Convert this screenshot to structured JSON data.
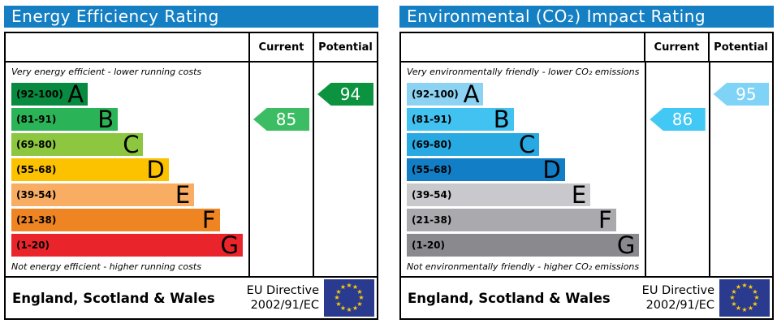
{
  "chart_data": [
    {
      "type": "bar",
      "title": "Energy Efficiency Rating",
      "columns": {
        "current": "Current",
        "potential": "Potential"
      },
      "top_note": "Very energy efficient - lower running costs",
      "bottom_note": "Not energy efficient - higher running costs",
      "bands": [
        {
          "letter": "A",
          "label": "(92-100)",
          "min": 92,
          "max": 100,
          "color": "#088a40",
          "width_pct": 33
        },
        {
          "letter": "B",
          "label": "(81-91)",
          "min": 81,
          "max": 91,
          "color": "#2bb457",
          "width_pct": 46
        },
        {
          "letter": "C",
          "label": "(69-80)",
          "min": 69,
          "max": 80,
          "color": "#8dc63f",
          "width_pct": 57
        },
        {
          "letter": "D",
          "label": "(55-68)",
          "min": 55,
          "max": 68,
          "color": "#fcc200",
          "width_pct": 68
        },
        {
          "letter": "E",
          "label": "(39-54)",
          "min": 39,
          "max": 54,
          "color": "#f9ad63",
          "width_pct": 79
        },
        {
          "letter": "F",
          "label": "(21-38)",
          "min": 21,
          "max": 38,
          "color": "#ee8522",
          "width_pct": 90
        },
        {
          "letter": "G",
          "label": "(1-20)",
          "min": 1,
          "max": 20,
          "color": "#e9252b",
          "width_pct": 100
        }
      ],
      "current": {
        "value": 85,
        "band": "B",
        "color": "#3dbd63"
      },
      "potential": {
        "value": 94,
        "band": "A",
        "color": "#0c9340"
      },
      "footer": {
        "region": "England, Scotland & Wales",
        "directive_line1": "EU Directive",
        "directive_line2": "2002/91/EC",
        "flag_icon": "eu-flag"
      }
    },
    {
      "type": "bar",
      "title": "Environmental (CO₂) Impact Rating",
      "columns": {
        "current": "Current",
        "potential": "Potential"
      },
      "top_note": "Very environmentally friendly - lower CO₂ emissions",
      "bottom_note": "Not environmentally friendly - higher CO₂ emissions",
      "bands": [
        {
          "letter": "A",
          "label": "(92-100)",
          "min": 92,
          "max": 100,
          "color": "#8cd3f3",
          "width_pct": 33
        },
        {
          "letter": "B",
          "label": "(81-91)",
          "min": 81,
          "max": 91,
          "color": "#41c2f1",
          "width_pct": 46
        },
        {
          "letter": "C",
          "label": "(69-80)",
          "min": 69,
          "max": 80,
          "color": "#28a9e2",
          "width_pct": 57
        },
        {
          "letter": "D",
          "label": "(55-68)",
          "min": 55,
          "max": 68,
          "color": "#117ec6",
          "width_pct": 68
        },
        {
          "letter": "E",
          "label": "(39-54)",
          "min": 39,
          "max": 54,
          "color": "#c9c8cd",
          "width_pct": 79
        },
        {
          "letter": "F",
          "label": "(21-38)",
          "min": 21,
          "max": 38,
          "color": "#a9a9ae",
          "width_pct": 90
        },
        {
          "letter": "G",
          "label": "(1-20)",
          "min": 1,
          "max": 20,
          "color": "#8a898e",
          "width_pct": 100
        }
      ],
      "current": {
        "value": 86,
        "band": "B",
        "color": "#41c8f4"
      },
      "potential": {
        "value": 95,
        "band": "A",
        "color": "#7fd3f7"
      },
      "footer": {
        "region": "England, Scotland & Wales",
        "directive_line1": "EU Directive",
        "directive_line2": "2002/91/EC",
        "flag_icon": "eu-flag"
      }
    }
  ],
  "colors": {
    "header_bg": "#147fc3",
    "header_text": "#ffffff",
    "border": "#000000",
    "flag_bg": "#2a3b8f",
    "flag_star": "#ffcc00"
  }
}
